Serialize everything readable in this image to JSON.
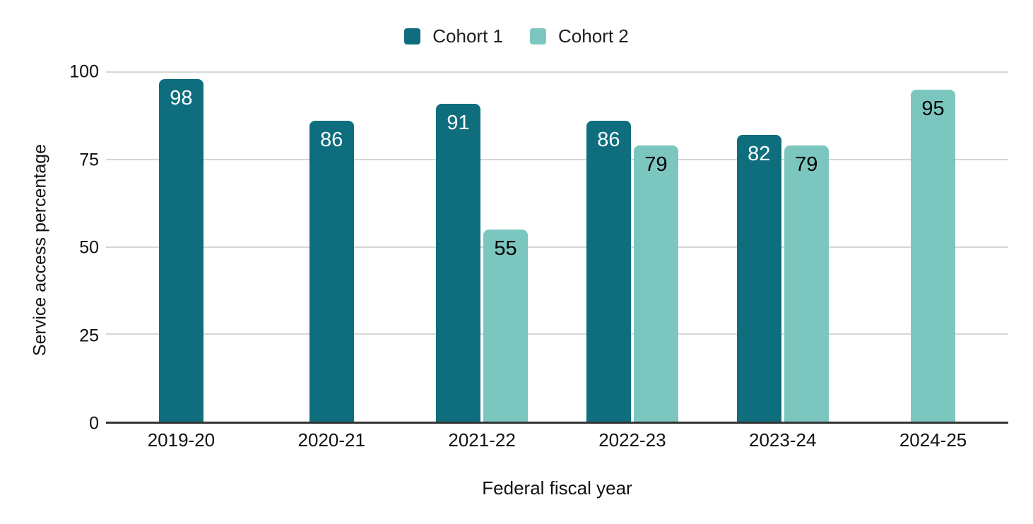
{
  "chart_data": {
    "type": "bar",
    "title": "",
    "xlabel": "Federal fiscal year",
    "ylabel": "Service access percentage",
    "categories": [
      "2019-20",
      "2020-21",
      "2021-22",
      "2022-23",
      "2023-24",
      "2024-25"
    ],
    "series": [
      {
        "name": "Cohort 1",
        "color": "#0e6e7e",
        "label_color": "#ffffff",
        "values": [
          98,
          86,
          91,
          86,
          82,
          null
        ]
      },
      {
        "name": "Cohort 2",
        "color": "#7cc6c0",
        "label_color": "#000000",
        "values": [
          null,
          null,
          55,
          79,
          79,
          95
        ]
      }
    ],
    "ylim": [
      0,
      100
    ],
    "yticks": [
      0,
      25,
      50,
      75,
      100
    ],
    "grid": true,
    "legend_position": "top"
  },
  "colors": {
    "background": "#ffffff",
    "gridline": "#d6d6d6",
    "axis_line": "#333333",
    "cohort1": "#0e6e7e",
    "cohort2": "#7cc6c0"
  }
}
